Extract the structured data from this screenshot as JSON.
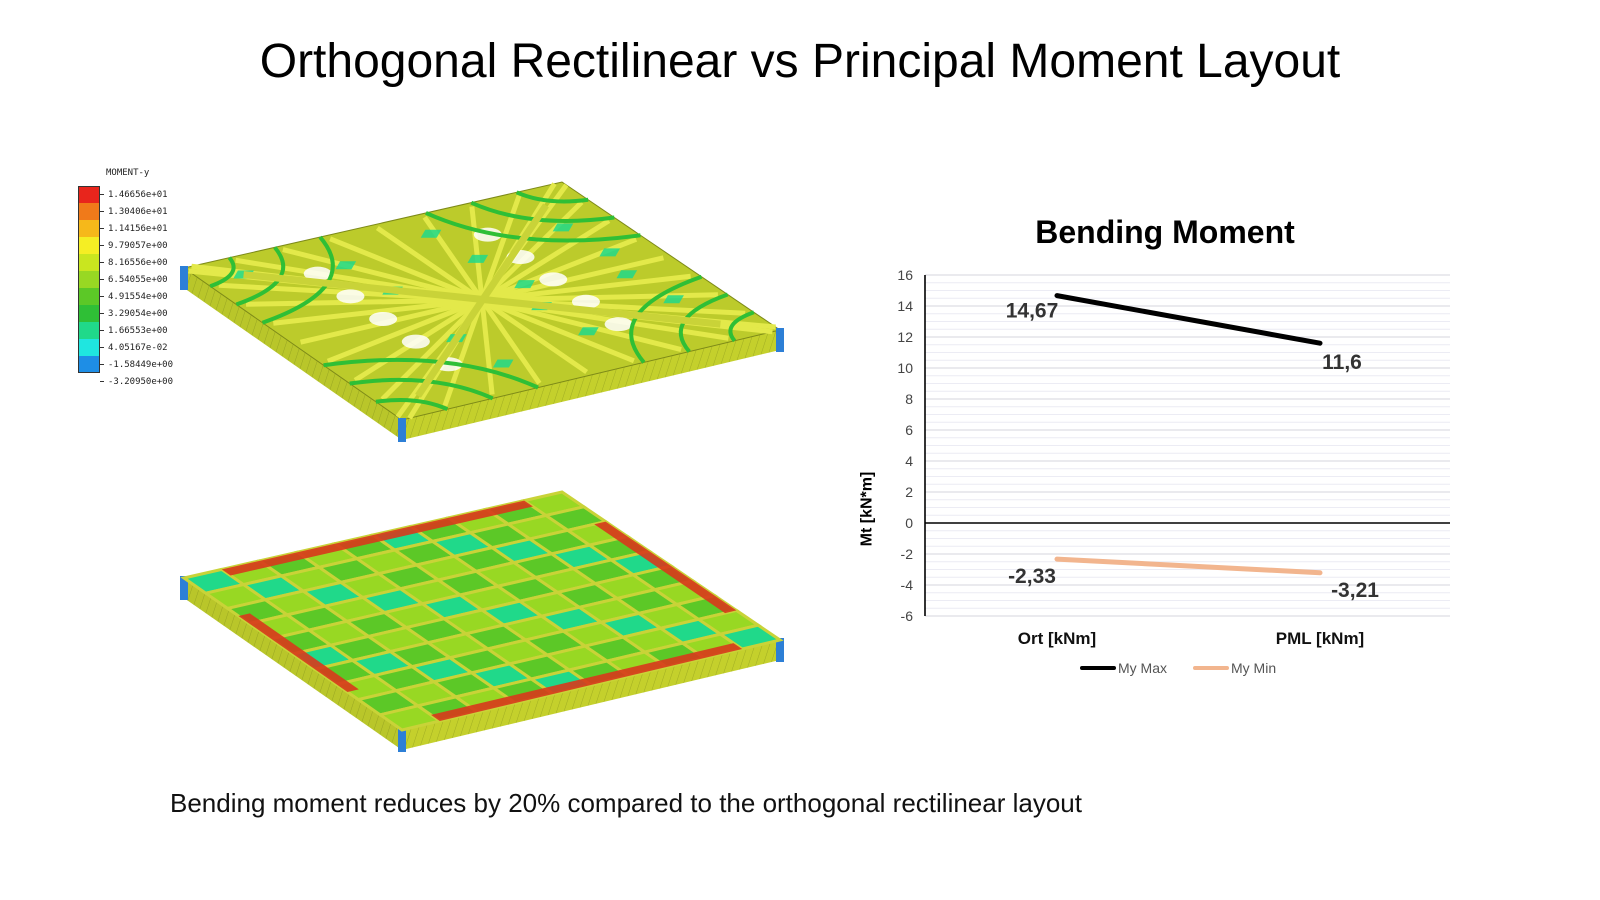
{
  "slide": {
    "title": "Orthogonal Rectilinear vs Principal Moment Layout",
    "caption": "Bending moment reduces by 20% compared to the orthogonal rectilinear layout"
  },
  "contour_legend": {
    "title": "MOMENT-y",
    "levels": [
      {
        "value": "1.46656e+01",
        "color": "#e8251c"
      },
      {
        "value": "1.30406e+01",
        "color": "#f07a1a"
      },
      {
        "value": "1.14156e+01",
        "color": "#f6b81a"
      },
      {
        "value": "9.79057e+00",
        "color": "#f5ee24"
      },
      {
        "value": "8.16556e+00",
        "color": "#c9e61f"
      },
      {
        "value": "6.54055e+00",
        "color": "#98d823"
      },
      {
        "value": "4.91554e+00",
        "color": "#5cc827"
      },
      {
        "value": "3.29054e+00",
        "color": "#2fbf36"
      },
      {
        "value": "1.66553e+00",
        "color": "#20d98a"
      },
      {
        "value": "4.05167e-02",
        "color": "#1fe6e0"
      },
      {
        "value": "-1.58449e+00",
        "color": "#1e8ee6"
      },
      {
        "value": "-3.20950e+00",
        "color": ""
      }
    ]
  },
  "chart_data": {
    "type": "line",
    "title": "Bending Moment",
    "ylabel": "Mt [kN*m]",
    "xlabel": "",
    "categories": [
      "Ort [kNm]",
      "PML [kNm]"
    ],
    "series": [
      {
        "name": "My Max",
        "values": [
          14.67,
          11.6
        ],
        "labels": [
          "14,67",
          "11,6"
        ],
        "color": "#000000"
      },
      {
        "name": "My Min",
        "values": [
          -2.33,
          -3.21
        ],
        "labels": [
          "-2,33",
          "-3,21"
        ],
        "color": "#f2b58e"
      }
    ],
    "ylim": [
      -6,
      16
    ],
    "yticks": [
      16,
      14,
      12,
      10,
      8,
      6,
      4,
      2,
      0,
      -2,
      -4,
      -6
    ],
    "grid": true,
    "legend_position": "bottom"
  }
}
